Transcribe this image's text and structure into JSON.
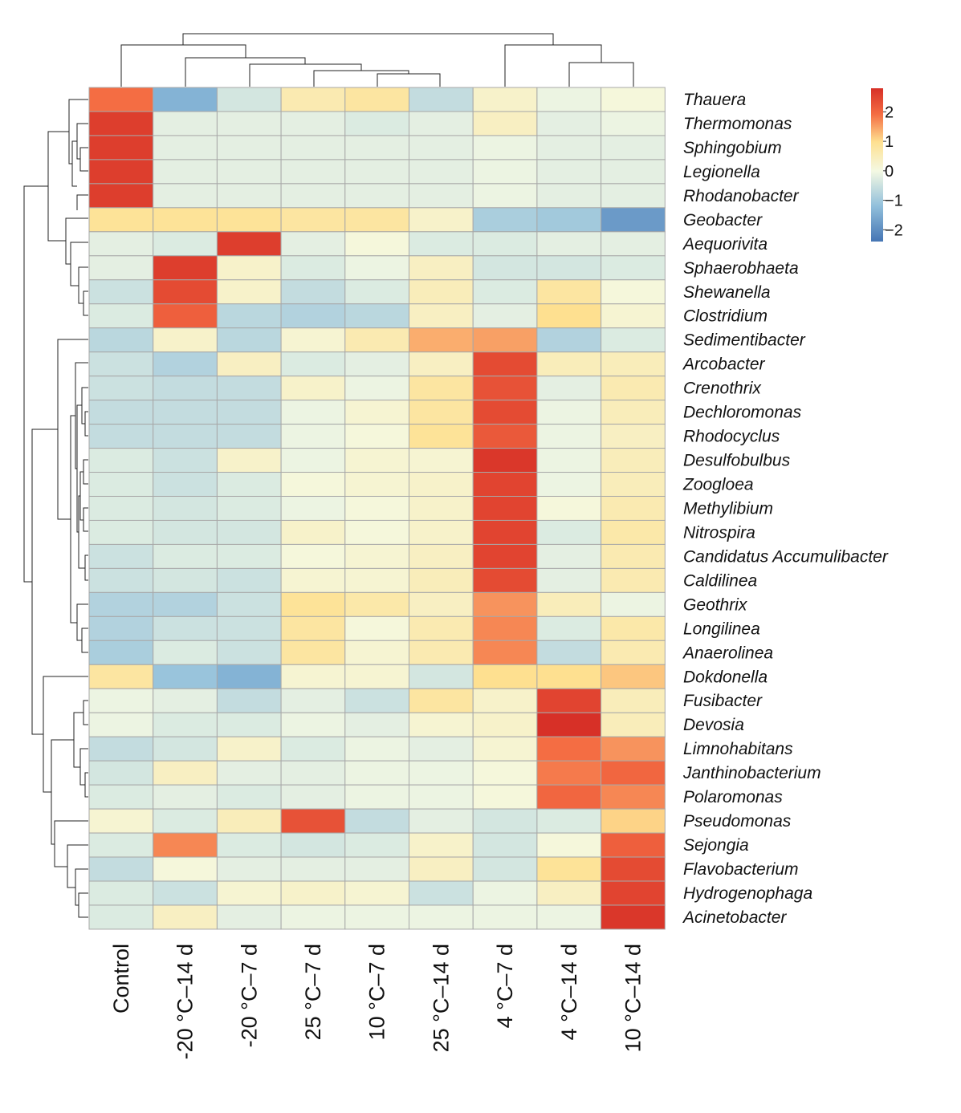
{
  "chart_data": {
    "type": "heatmap",
    "title": "",
    "columns": [
      "Control",
      "-20 °C–14 d",
      "-20 °C–7 d",
      "25 °C–7 d",
      "10 °C–7 d",
      "25 °C–14 d",
      "4 °C–7 d",
      "4 °C–14 d",
      "10 °C–14 d"
    ],
    "rows": [
      "Thauera",
      "Thermomonas",
      "Sphingobium",
      "Legionella",
      "Rhodanobacter",
      "Geobacter",
      "Aequorivita",
      "Sphaerobhaeta",
      "Shewanella",
      "Clostridium",
      "Sedimentibacter",
      "Arcobacter",
      "Crenothrix",
      "Dechloromonas",
      "Rhodocyclus",
      "Desulfobulbus",
      "Zoogloea",
      "Methylibium",
      "Nitrospira",
      "Candidatus Accumulibacter",
      "Caldilinea",
      "Geothrix",
      "Longilinea",
      "Anaerolinea",
      "Dokdonella",
      "Fusibacter",
      "Devosia",
      "Limnohabitans",
      "Janthinobacterium",
      "Polaromonas",
      "Pseudomonas",
      "Sejongia",
      "Flavobacterium",
      "Hydrogenophaga",
      "Acinetobacter"
    ],
    "values": [
      [
        1.9,
        -1.4,
        -0.4,
        0.6,
        0.8,
        -0.6,
        0.3,
        -0.1,
        0.1
      ],
      [
        2.6,
        -0.2,
        -0.2,
        -0.2,
        -0.3,
        -0.2,
        0.4,
        -0.2,
        -0.1
      ],
      [
        2.6,
        -0.2,
        -0.2,
        -0.2,
        -0.2,
        -0.2,
        -0.1,
        -0.2,
        -0.2
      ],
      [
        2.6,
        -0.2,
        -0.2,
        -0.2,
        -0.2,
        -0.2,
        -0.1,
        -0.2,
        -0.2
      ],
      [
        2.6,
        -0.2,
        -0.2,
        -0.2,
        -0.2,
        -0.2,
        -0.1,
        -0.2,
        -0.2
      ],
      [
        0.9,
        0.9,
        0.9,
        0.8,
        0.8,
        0.3,
        -0.9,
        -1.0,
        -1.8
      ],
      [
        -0.2,
        -0.3,
        2.6,
        -0.2,
        0.1,
        -0.3,
        -0.3,
        -0.2,
        -0.2
      ],
      [
        -0.2,
        2.6,
        0.3,
        -0.3,
        -0.1,
        0.4,
        -0.4,
        -0.4,
        -0.3
      ],
      [
        -0.5,
        2.4,
        0.3,
        -0.6,
        -0.3,
        0.5,
        -0.3,
        0.8,
        0.1
      ],
      [
        -0.3,
        2.1,
        -0.7,
        -0.8,
        -0.7,
        0.4,
        -0.2,
        1.0,
        0.2
      ],
      [
        -0.7,
        0.3,
        -0.7,
        0.2,
        0.6,
        1.4,
        1.5,
        -0.8,
        -0.3
      ],
      [
        -0.5,
        -0.8,
        0.4,
        -0.3,
        -0.2,
        0.4,
        2.4,
        0.5,
        0.5
      ],
      [
        -0.5,
        -0.6,
        -0.6,
        0.3,
        -0.1,
        0.8,
        2.3,
        -0.2,
        0.6
      ],
      [
        -0.6,
        -0.6,
        -0.6,
        -0.1,
        0.2,
        0.8,
        2.4,
        -0.1,
        0.5
      ],
      [
        -0.6,
        -0.6,
        -0.6,
        -0.1,
        0.1,
        0.9,
        2.2,
        -0.1,
        0.4
      ],
      [
        -0.3,
        -0.5,
        0.3,
        -0.1,
        0.2,
        0.2,
        2.7,
        -0.1,
        0.5
      ],
      [
        -0.3,
        -0.5,
        -0.3,
        0.1,
        0.2,
        0.3,
        2.5,
        -0.1,
        0.5
      ],
      [
        -0.3,
        -0.4,
        -0.3,
        -0.1,
        0.1,
        0.3,
        2.5,
        0.1,
        0.6
      ],
      [
        -0.3,
        -0.4,
        -0.4,
        0.3,
        0.1,
        0.3,
        2.5,
        -0.3,
        0.7
      ],
      [
        -0.5,
        -0.3,
        -0.3,
        0.1,
        0.2,
        0.4,
        2.5,
        -0.2,
        0.6
      ],
      [
        -0.5,
        -0.4,
        -0.5,
        0.2,
        0.2,
        0.5,
        2.4,
        -0.2,
        0.6
      ],
      [
        -0.8,
        -0.8,
        -0.5,
        0.9,
        0.7,
        0.4,
        1.6,
        0.5,
        -0.1
      ],
      [
        -0.8,
        -0.5,
        -0.5,
        0.8,
        0.1,
        0.6,
        1.7,
        -0.3,
        0.7
      ],
      [
        -0.9,
        -0.3,
        -0.5,
        0.8,
        0.2,
        0.6,
        1.7,
        -0.6,
        0.6
      ],
      [
        0.8,
        -1.1,
        -1.4,
        0.2,
        0.2,
        -0.4,
        1.0,
        1.0,
        1.2
      ],
      [
        -0.1,
        -0.2,
        -0.6,
        -0.2,
        -0.5,
        0.8,
        0.3,
        2.5,
        0.5
      ],
      [
        -0.1,
        -0.3,
        -0.3,
        -0.1,
        -0.2,
        0.2,
        0.3,
        2.8,
        0.5
      ],
      [
        -0.6,
        -0.4,
        0.3,
        -0.3,
        -0.1,
        -0.2,
        0.2,
        1.9,
        1.6
      ],
      [
        -0.4,
        0.4,
        -0.2,
        -0.2,
        -0.1,
        -0.1,
        0.1,
        1.8,
        2.0
      ],
      [
        -0.3,
        -0.2,
        -0.3,
        -0.2,
        -0.1,
        -0.1,
        0.1,
        2.0,
        1.7
      ],
      [
        0.2,
        -0.3,
        0.5,
        2.3,
        -0.6,
        -0.2,
        -0.4,
        -0.3,
        1.1
      ],
      [
        -0.3,
        1.7,
        -0.3,
        -0.4,
        -0.3,
        0.3,
        -0.4,
        0.1,
        2.1
      ],
      [
        -0.6,
        0.1,
        -0.2,
        -0.2,
        -0.2,
        0.4,
        -0.4,
        0.9,
        2.4
      ],
      [
        -0.3,
        -0.5,
        0.2,
        0.3,
        0.2,
        -0.5,
        -0.1,
        0.4,
        2.5
      ],
      [
        -0.3,
        0.4,
        -0.2,
        -0.1,
        -0.1,
        -0.1,
        -0.1,
        -0.1,
        2.7
      ]
    ],
    "color_scale": {
      "min": -2.4,
      "max": 2.8,
      "stops": [
        {
          "value": -2.4,
          "color": "#4575b4"
        },
        {
          "value": -1.2,
          "color": "#91bfdb"
        },
        {
          "value": 0.0,
          "color": "#f4f9e3"
        },
        {
          "value": 1.0,
          "color": "#fee090"
        },
        {
          "value": 1.9,
          "color": "#f46d43"
        },
        {
          "value": 2.8,
          "color": "#d73027"
        }
      ]
    },
    "legend": {
      "ticks": [
        "2",
        "1",
        "0",
        "−1",
        "−2"
      ],
      "tick_values": [
        2,
        1,
        0,
        -1,
        -2
      ],
      "placement": "top-right"
    },
    "row_dendrogram": true,
    "column_dendrogram": true
  }
}
